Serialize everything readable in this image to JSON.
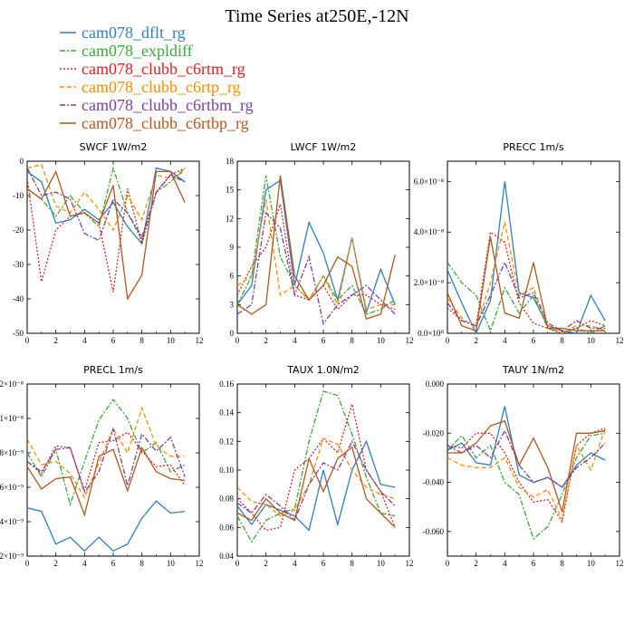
{
  "figure_title": "Time Series at250E,-12N",
  "colors": {
    "cam078_dflt_rg": "#2f7fc1",
    "cam078_expldiff": "#3aa83a",
    "cam078_clubb_c6rtm_rg": "#e02020",
    "cam078_clubb_c6rtp_rg": "#ff8c00",
    "cam078_clubb_c6rtbm_rg": "#7b3fa0",
    "cam078_clubb_c6rtbp_rg": "#b5561f"
  },
  "legend": [
    {
      "label": "cam078_dflt_rg",
      "color": "#2f7fc1",
      "dash": "solid"
    },
    {
      "label": "cam078_expldiff",
      "color": "#3aa83a",
      "dash": "dashdot"
    },
    {
      "label": "cam078_clubb_c6rtm_rg",
      "color": "#e02020",
      "dash": "dot"
    },
    {
      "label": "cam078_clubb_c6rtp_rg",
      "color": "#ff8c00",
      "dash": "dash"
    },
    {
      "label": "cam078_clubb_c6rtbm_rg",
      "color": "#7b3fa0",
      "dash": "dashdot"
    },
    {
      "label": "cam078_clubb_c6rtbp_rg",
      "color": "#b5561f",
      "dash": "solid"
    }
  ],
  "chart_data": [
    {
      "type": "line",
      "title": "SWCF   1W/m2",
      "xlim": [
        0,
        12
      ],
      "ylim": [
        -50,
        0
      ],
      "xticks": [
        "0",
        "2",
        "4",
        "6",
        "8",
        "10",
        "12"
      ],
      "yticks": [
        {
          "v": 0,
          "t": "0"
        },
        {
          "v": -10,
          "t": "-10"
        },
        {
          "v": -20,
          "t": "-20"
        },
        {
          "v": -30,
          "t": "-30"
        },
        {
          "v": -40,
          "t": "-40"
        },
        {
          "v": -50,
          "t": "-50"
        }
      ],
      "x": [
        0,
        1,
        2,
        3,
        4,
        5,
        6,
        7,
        8,
        9,
        10,
        11
      ],
      "series": [
        {
          "name": "cam078_dflt_rg",
          "values": [
            -3,
            -6,
            -18,
            -17,
            -14,
            -17,
            -12,
            -19,
            -24,
            -2,
            -3,
            -6
          ]
        },
        {
          "name": "cam078_expldiff",
          "values": [
            -8,
            -11,
            -16,
            -10,
            -15,
            -19,
            -2,
            -15,
            -23,
            -9,
            -6,
            -2
          ]
        },
        {
          "name": "cam078_clubb_c6rtm_rg",
          "values": [
            -5,
            -35,
            -20,
            -16,
            -15,
            -18,
            -38,
            -8,
            -24,
            -9,
            -4,
            -2
          ]
        },
        {
          "name": "cam078_clubb_c6rtp_rg",
          "values": [
            -2,
            -1,
            -13,
            -15,
            -9,
            -14,
            -20,
            -10,
            -17,
            -4,
            -5,
            -3
          ]
        },
        {
          "name": "cam078_clubb_c6rtbm_rg",
          "values": [
            -2,
            -10,
            -9,
            -11,
            -21,
            -23,
            -11,
            -15,
            -22,
            -9,
            -4,
            -6
          ]
        },
        {
          "name": "cam078_clubb_c6rtbp_rg",
          "values": [
            -8,
            -11,
            -3,
            -16,
            -15,
            -18,
            -7,
            -40,
            -33,
            -3,
            -3,
            -12
          ]
        }
      ]
    },
    {
      "type": "line",
      "title": "LWCF   1W/m2",
      "xlim": [
        0,
        12
      ],
      "ylim": [
        0,
        18
      ],
      "xticks": [
        "0",
        "2",
        "4",
        "6",
        "8",
        "10",
        "12"
      ],
      "yticks": [
        {
          "v": 0,
          "t": "0"
        },
        {
          "v": 3,
          "t": "3"
        },
        {
          "v": 6,
          "t": "6"
        },
        {
          "v": 9,
          "t": "9"
        },
        {
          "v": 12,
          "t": "12"
        },
        {
          "v": 15,
          "t": "15"
        },
        {
          "v": 18,
          "t": "18"
        }
      ],
      "x": [
        0,
        1,
        2,
        3,
        4,
        5,
        6,
        7,
        8,
        9,
        10,
        11
      ],
      "series": [
        {
          "name": "cam078_dflt_rg",
          "values": [
            3,
            5,
            15,
            16,
            5,
            11.6,
            8.4,
            3.5,
            10,
            2.2,
            6.7,
            3
          ]
        },
        {
          "name": "cam078_expldiff",
          "values": [
            3,
            6,
            16.5,
            8,
            5,
            3.5,
            6,
            3.5,
            5,
            2,
            2.5,
            3.5
          ]
        },
        {
          "name": "cam078_clubb_c6rtm_rg",
          "values": [
            4,
            7,
            9,
            13.5,
            4,
            3.5,
            5,
            2.5,
            4,
            4,
            3,
            2.5
          ]
        },
        {
          "name": "cam078_clubb_c6rtp_rg",
          "values": [
            5,
            6,
            14,
            4,
            5,
            3.5,
            6,
            3,
            10,
            2.5,
            3,
            3
          ]
        },
        {
          "name": "cam078_clubb_c6rtbm_rg",
          "values": [
            2,
            3,
            12.6,
            11,
            4,
            8,
            1,
            3,
            4,
            5,
            3.5,
            2
          ]
        },
        {
          "name": "cam078_clubb_c6rtbp_rg",
          "values": [
            3,
            2,
            3,
            16.5,
            6,
            3.5,
            5,
            8,
            7,
            1.5,
            2,
            8.2
          ]
        }
      ]
    },
    {
      "type": "line",
      "title": "PRECC   1m/s",
      "xlim": [
        0,
        12
      ],
      "ylim": [
        0,
        6.8e-08
      ],
      "xticks": [
        "0",
        "2",
        "4",
        "6",
        "8",
        "10",
        "12"
      ],
      "yticks": [
        {
          "v": 0,
          "t": "0.0×10⁰"
        },
        {
          "v": 2e-08,
          "t": "2.0×10⁻⁸"
        },
        {
          "v": 4e-08,
          "t": "4.0×10⁻⁸"
        },
        {
          "v": 6e-08,
          "t": "6.0×10⁻⁸"
        }
      ],
      "x": [
        0,
        1,
        2,
        3,
        4,
        5,
        6,
        7,
        8,
        9,
        10,
        11
      ],
      "series": [
        {
          "name": "cam078_dflt_rg",
          "values": [
            2.5e-08,
            1.2e-08,
            0,
            1.3e-08,
            6e-08,
            1.6e-08,
            1.4e-08,
            3e-09,
            1e-09,
            0,
            1.5e-08,
            5e-09
          ]
        },
        {
          "name": "cam078_expldiff",
          "values": [
            2.8e-08,
            2e-08,
            1.5e-08,
            1e-09,
            1.8e-08,
            8e-09,
            1.5e-08,
            2e-09,
            0,
            2e-09,
            0,
            3e-09
          ]
        },
        {
          "name": "cam078_clubb_c6rtm_rg",
          "values": [
            1e-08,
            5e-09,
            3e-09,
            4e-08,
            3.6e-08,
            1.2e-08,
            4e-09,
            2e-09,
            0,
            2e-09,
            5e-09,
            3e-09
          ]
        },
        {
          "name": "cam078_clubb_c6rtp_rg",
          "values": [
            1.4e-08,
            6e-09,
            2e-09,
            2e-08,
            4.4e-08,
            1.5e-08,
            1.8e-08,
            3e-09,
            0,
            3e-09,
            3e-09,
            1e-09
          ]
        },
        {
          "name": "cam078_clubb_c6rtbm_rg",
          "values": [
            1.2e-08,
            5e-09,
            3e-09,
            1.5e-08,
            2.8e-08,
            1.4e-08,
            1.6e-08,
            4e-09,
            1e-09,
            5e-09,
            2e-09,
            2e-09
          ]
        },
        {
          "name": "cam078_clubb_c6rtbp_rg",
          "values": [
            1.6e-08,
            3e-09,
            1e-09,
            3.8e-08,
            8e-09,
            6e-09,
            2.8e-08,
            2e-09,
            2e-09,
            1e-09,
            1e-09,
            1e-09
          ]
        }
      ]
    },
    {
      "type": "line",
      "title": "PRECL   1m/s",
      "xlim": [
        0,
        12
      ],
      "ylim": [
        2e-09,
        1.2e-08
      ],
      "xticks": [
        "0",
        "2",
        "4",
        "6",
        "8",
        "10",
        "12"
      ],
      "yticks": [
        {
          "v": 2e-09,
          "t": "2×10⁻⁹"
        },
        {
          "v": 4e-09,
          "t": "4×10⁻⁹"
        },
        {
          "v": 6e-09,
          "t": "6×10⁻⁹"
        },
        {
          "v": 8e-09,
          "t": "8×10⁻⁹"
        },
        {
          "v": 1e-08,
          "t": "1×10⁻⁸"
        },
        {
          "v": 1.2e-08,
          "t": "1.2×10⁻⁸"
        }
      ],
      "x": [
        0,
        1,
        2,
        3,
        4,
        5,
        6,
        7,
        8,
        9,
        10,
        11
      ],
      "series": [
        {
          "name": "cam078_dflt_rg",
          "values": [
            4.8e-09,
            4.6e-09,
            2.7e-09,
            3.1e-09,
            2.3e-09,
            3.1e-09,
            2.3e-09,
            2.7e-09,
            4.2e-09,
            5.2e-09,
            4.5e-09,
            4.6e-09
          ]
        },
        {
          "name": "cam078_expldiff",
          "values": [
            8e-09,
            6.6e-09,
            8.2e-09,
            5e-09,
            7.5e-09,
            9.9e-09,
            1.11e-08,
            1e-08,
            8e-09,
            8.6e-09,
            6.9e-09,
            7.3e-09
          ]
        },
        {
          "name": "cam078_clubb_c6rtm_rg",
          "values": [
            7.5e-09,
            6.8e-09,
            8.4e-09,
            8.3e-09,
            5.8e-09,
            8.6e-09,
            8.7e-09,
            9.2e-09,
            8.1e-09,
            7.2e-09,
            7.3e-09,
            6.1e-09
          ]
        },
        {
          "name": "cam078_clubb_c6rtp_rg",
          "values": [
            8.8e-09,
            7.3e-09,
            7.5e-09,
            6.8e-09,
            5.4e-09,
            7.4e-09,
            9.4e-09,
            8e-09,
            1.06e-08,
            8.4e-09,
            7.8e-09,
            7.8e-09
          ]
        },
        {
          "name": "cam078_clubb_c6rtbm_rg",
          "values": [
            7.5e-09,
            6.9e-09,
            8.2e-09,
            8.3e-09,
            5.7e-09,
            6.9e-09,
            9.4e-09,
            6.1e-09,
            9.1e-09,
            8.1e-09,
            8.9e-09,
            6.6e-09
          ]
        },
        {
          "name": "cam078_clubb_c6rtbp_rg",
          "values": [
            7.2e-09,
            5.9e-09,
            6.5e-09,
            6.6e-09,
            4.4e-09,
            7.8e-09,
            8.2e-09,
            5.8e-09,
            8.3e-09,
            6.9e-09,
            6.5e-09,
            6.4e-09
          ]
        }
      ]
    },
    {
      "type": "line",
      "title": "TAUX   1.0N/m2",
      "xlim": [
        0,
        12
      ],
      "ylim": [
        0.04,
        0.16
      ],
      "xticks": [
        "0",
        "2",
        "4",
        "6",
        "8",
        "10",
        "12"
      ],
      "yticks": [
        {
          "v": 0.04,
          "t": "0.04"
        },
        {
          "v": 0.06,
          "t": "0.06"
        },
        {
          "v": 0.08,
          "t": "0.08"
        },
        {
          "v": 0.1,
          "t": "0.10"
        },
        {
          "v": 0.12,
          "t": "0.12"
        },
        {
          "v": 0.14,
          "t": "0.14"
        },
        {
          "v": 0.16,
          "t": "0.16"
        }
      ],
      "x": [
        0,
        1,
        2,
        3,
        4,
        5,
        6,
        7,
        8,
        9,
        10,
        11
      ],
      "series": [
        {
          "name": "cam078_dflt_rg",
          "values": [
            0.075,
            0.062,
            0.076,
            0.072,
            0.068,
            0.058,
            0.1,
            0.062,
            0.1,
            0.12,
            0.09,
            0.088
          ]
        },
        {
          "name": "cam078_expldiff",
          "values": [
            0.068,
            0.05,
            0.065,
            0.07,
            0.073,
            0.12,
            0.155,
            0.152,
            0.125,
            0.095,
            0.07,
            0.068
          ]
        },
        {
          "name": "cam078_clubb_c6rtm_rg",
          "values": [
            0.08,
            0.07,
            0.058,
            0.06,
            0.1,
            0.108,
            0.122,
            0.112,
            0.146,
            0.1,
            0.085,
            0.06
          ]
        },
        {
          "name": "cam078_clubb_c6rtp_rg",
          "values": [
            0.088,
            0.078,
            0.076,
            0.068,
            0.072,
            0.09,
            0.122,
            0.118,
            0.1,
            0.088,
            0.083,
            0.08
          ]
        },
        {
          "name": "cam078_clubb_c6rtbm_rg",
          "values": [
            0.077,
            0.07,
            0.083,
            0.075,
            0.065,
            0.09,
            0.105,
            0.1,
            0.12,
            0.1,
            0.085,
            0.075
          ]
        },
        {
          "name": "cam078_clubb_c6rtbp_rg",
          "values": [
            0.07,
            0.065,
            0.08,
            0.07,
            0.065,
            0.108,
            0.085,
            0.108,
            0.116,
            0.08,
            0.07,
            0.06
          ]
        }
      ]
    },
    {
      "type": "line",
      "title": "TAUY   1N/m2",
      "xlim": [
        0,
        12
      ],
      "ylim": [
        -0.07,
        0.0
      ],
      "xticks": [
        "0",
        "2",
        "4",
        "6",
        "8",
        "10",
        "12"
      ],
      "yticks": [
        {
          "v": 0,
          "t": "0.000"
        },
        {
          "v": -0.02,
          "t": "-0.020"
        },
        {
          "v": -0.04,
          "t": "-0.040"
        },
        {
          "v": -0.06,
          "t": "-0.060"
        }
      ],
      "x": [
        0,
        1,
        2,
        3,
        4,
        5,
        6,
        7,
        8,
        9,
        10,
        11
      ],
      "series": [
        {
          "name": "cam078_dflt_rg",
          "values": [
            -0.027,
            -0.024,
            -0.032,
            -0.033,
            -0.009,
            -0.037,
            -0.04,
            -0.038,
            -0.042,
            -0.033,
            -0.028,
            -0.031
          ]
        },
        {
          "name": "cam078_expldiff",
          "values": [
            -0.027,
            -0.021,
            -0.03,
            -0.025,
            -0.04,
            -0.045,
            -0.063,
            -0.058,
            -0.045,
            -0.03,
            -0.021,
            -0.02
          ]
        },
        {
          "name": "cam078_clubb_c6rtm_rg",
          "values": [
            -0.025,
            -0.026,
            -0.02,
            -0.02,
            -0.028,
            -0.04,
            -0.048,
            -0.047,
            -0.056,
            -0.025,
            -0.02,
            -0.018
          ]
        },
        {
          "name": "cam078_clubb_c6rtp_rg",
          "values": [
            -0.03,
            -0.033,
            -0.034,
            -0.034,
            -0.03,
            -0.042,
            -0.046,
            -0.043,
            -0.055,
            -0.025,
            -0.035,
            -0.018
          ]
        },
        {
          "name": "cam078_clubb_c6rtbm_rg",
          "values": [
            -0.025,
            -0.028,
            -0.025,
            -0.03,
            -0.019,
            -0.033,
            -0.04,
            -0.038,
            -0.042,
            -0.034,
            -0.03,
            -0.024
          ]
        },
        {
          "name": "cam078_clubb_c6rtbp_rg",
          "values": [
            -0.028,
            -0.028,
            -0.024,
            -0.017,
            -0.015,
            -0.033,
            -0.022,
            -0.034,
            -0.052,
            -0.02,
            -0.02,
            -0.019
          ]
        }
      ]
    }
  ]
}
